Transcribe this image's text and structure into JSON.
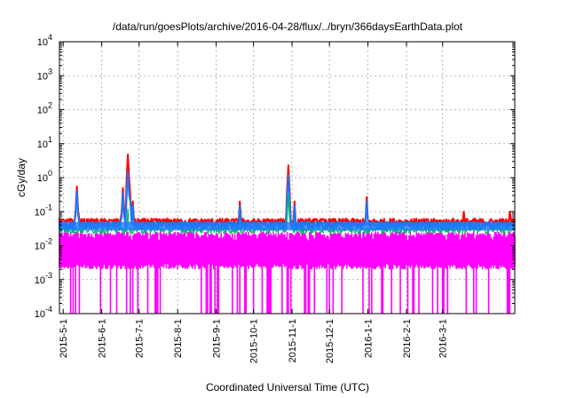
{
  "chart_data": {
    "type": "line",
    "title": "/data/run/goesPlots/archive/2016-04-28/flux/../bryn/366daysEarthData.plot",
    "xlabel": "Coordinated Universal Time (UTC)",
    "ylabel": "cGy/day",
    "yscale": "log",
    "ylim": [
      0.0001,
      10000
    ],
    "xlim": [
      "2015-04-28",
      "2016-04-28"
    ],
    "grid": true,
    "x_ticks": [
      "2015-5-1",
      "2015-6-1",
      "2015-7-1",
      "2015-8-1",
      "2015-9-1",
      "2015-10-1",
      "2015-11-1",
      "2015-12-1",
      "2016-1-1",
      "2016-2-1",
      "2016-3-1"
    ],
    "y_ticks": [
      {
        "value": 0.0001,
        "base": "10",
        "exp": "-4"
      },
      {
        "value": 0.001,
        "base": "10",
        "exp": "-3"
      },
      {
        "value": 0.01,
        "base": "10",
        "exp": "-2"
      },
      {
        "value": 0.1,
        "base": "10",
        "exp": "-1"
      },
      {
        "value": 1,
        "base": "10",
        "exp": "0"
      },
      {
        "value": 10,
        "base": "10",
        "exp": "1"
      },
      {
        "value": 100,
        "base": "10",
        "exp": "2"
      },
      {
        "value": 1000,
        "base": "10",
        "exp": "3"
      },
      {
        "value": 10000,
        "base": "10",
        "exp": "4"
      }
    ],
    "series": [
      {
        "color": "#ff0000",
        "baseline": 0.05,
        "spikes": [
          {
            "date": "2015-05-12",
            "value": 0.55
          },
          {
            "date": "2015-06-18",
            "value": 0.5
          },
          {
            "date": "2015-06-22",
            "value": 4.8
          },
          {
            "date": "2015-06-24",
            "value": 0.28
          },
          {
            "date": "2015-06-26",
            "value": 0.2
          },
          {
            "date": "2015-09-20",
            "value": 0.2
          },
          {
            "date": "2015-10-29",
            "value": 2.3
          },
          {
            "date": "2015-11-03",
            "value": 0.2
          },
          {
            "date": "2015-12-31",
            "value": 0.27
          },
          {
            "date": "2016-03-18",
            "value": 0.1
          },
          {
            "date": "2016-04-24",
            "value": 0.1
          }
        ]
      },
      {
        "color": "#1e78ff",
        "baseline": 0.04,
        "spikes": [
          {
            "date": "2015-05-12",
            "value": 0.4
          },
          {
            "date": "2015-06-18",
            "value": 0.35
          },
          {
            "date": "2015-06-22",
            "value": 1.5
          },
          {
            "date": "2015-06-24",
            "value": 0.2
          },
          {
            "date": "2015-06-26",
            "value": 0.15
          },
          {
            "date": "2015-09-20",
            "value": 0.15
          },
          {
            "date": "2015-10-29",
            "value": 1.2
          },
          {
            "date": "2015-11-03",
            "value": 0.15
          },
          {
            "date": "2015-12-31",
            "value": 0.2
          }
        ]
      },
      {
        "color": "#00c050",
        "baseline": 0.03,
        "spikes": [
          {
            "date": "2015-06-22",
            "value": 0.12
          },
          {
            "date": "2015-10-29",
            "value": 0.3
          }
        ]
      },
      {
        "color": "#ff00ff",
        "baseline_high": 0.02,
        "baseline_low": 0.0025,
        "dropout_min": 0.0001
      }
    ]
  }
}
